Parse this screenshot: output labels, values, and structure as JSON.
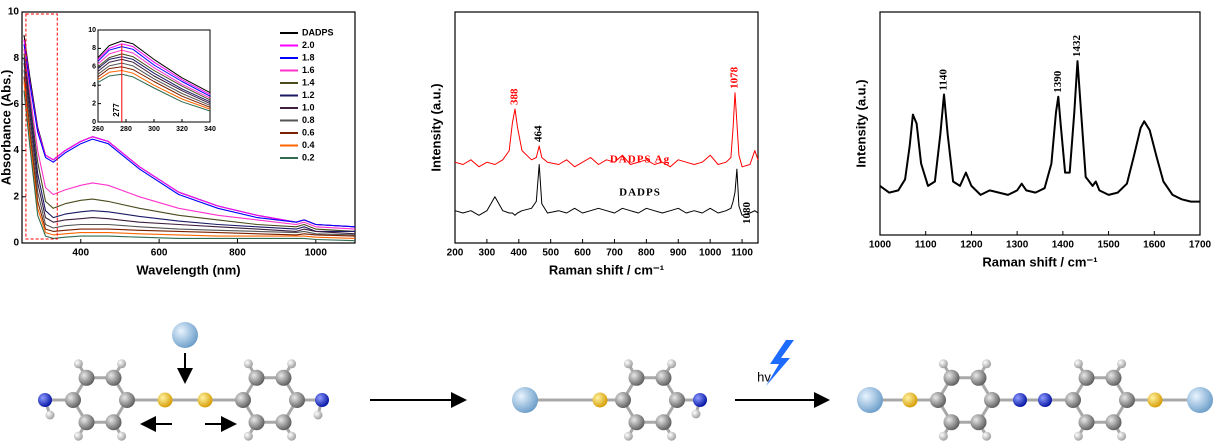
{
  "chart_data": [
    {
      "type": "line",
      "x_label": "Wavelength (nm)",
      "y_label": "Absorbance (Abs.)",
      "xlim": [
        250,
        1100
      ],
      "ylim": [
        0,
        10
      ],
      "xticks": [
        400,
        600,
        800,
        1000
      ],
      "yticks": [
        0,
        2,
        4,
        6,
        8,
        10
      ],
      "legend": "upper right",
      "x": [
        255,
        270,
        290,
        310,
        330,
        360,
        400,
        430,
        470,
        550,
        650,
        750,
        850,
        950,
        970,
        1000,
        1100
      ],
      "series": [
        {
          "name": "DADPS",
          "color": "#000000",
          "values": [
            9.0,
            7.2,
            5.0,
            3.8,
            3.6,
            4.0,
            4.4,
            4.6,
            4.4,
            3.3,
            2.2,
            1.6,
            1.2,
            0.9,
            1.0,
            0.8,
            0.7
          ]
        },
        {
          "name": "2.0",
          "color": "#ff00ff",
          "values": [
            8.8,
            7.0,
            4.9,
            3.8,
            3.6,
            4.0,
            4.4,
            4.6,
            4.4,
            3.3,
            2.2,
            1.6,
            1.2,
            0.9,
            1.0,
            0.8,
            0.7
          ]
        },
        {
          "name": "1.8",
          "color": "#0000ff",
          "values": [
            8.6,
            6.9,
            4.8,
            3.7,
            3.5,
            3.9,
            4.3,
            4.5,
            4.3,
            3.2,
            2.1,
            1.5,
            1.1,
            0.9,
            1.0,
            0.8,
            0.7
          ]
        },
        {
          "name": "1.6",
          "color": "#ff33cc",
          "values": [
            8.4,
            6.5,
            4.0,
            2.4,
            2.1,
            2.3,
            2.5,
            2.6,
            2.5,
            2.0,
            1.5,
            1.2,
            1.0,
            0.8,
            0.9,
            0.7,
            0.6
          ]
        },
        {
          "name": "1.4",
          "color": "#4b4b1e",
          "values": [
            8.2,
            6.2,
            3.5,
            1.8,
            1.5,
            1.7,
            1.85,
            1.9,
            1.8,
            1.5,
            1.2,
            1.0,
            0.8,
            0.7,
            0.8,
            0.6,
            0.5
          ]
        },
        {
          "name": "1.2",
          "color": "#1a1a66",
          "values": [
            8.0,
            6.0,
            3.0,
            1.4,
            1.1,
            1.25,
            1.35,
            1.4,
            1.35,
            1.15,
            0.95,
            0.8,
            0.7,
            0.6,
            0.7,
            0.5,
            0.5
          ]
        },
        {
          "name": "1.0",
          "color": "#3d1f3d",
          "values": [
            7.8,
            5.6,
            2.6,
            1.1,
            0.9,
            1.0,
            1.05,
            1.1,
            1.05,
            0.9,
            0.8,
            0.7,
            0.6,
            0.5,
            0.6,
            0.5,
            0.4
          ]
        },
        {
          "name": "0.8",
          "color": "#555555",
          "values": [
            7.5,
            5.2,
            2.2,
            0.8,
            0.65,
            0.75,
            0.8,
            0.8,
            0.8,
            0.7,
            0.6,
            0.55,
            0.5,
            0.45,
            0.5,
            0.4,
            0.35
          ]
        },
        {
          "name": "0.6",
          "color": "#7a1f00",
          "values": [
            7.2,
            4.8,
            1.8,
            0.6,
            0.5,
            0.55,
            0.6,
            0.6,
            0.6,
            0.55,
            0.5,
            0.45,
            0.4,
            0.35,
            0.4,
            0.35,
            0.3
          ]
        },
        {
          "name": "0.4",
          "color": "#ff6600",
          "values": [
            7.0,
            4.5,
            1.5,
            0.45,
            0.35,
            0.4,
            0.45,
            0.45,
            0.45,
            0.4,
            0.35,
            0.3,
            0.3,
            0.3,
            0.3,
            0.25,
            0.2
          ]
        },
        {
          "name": "0.2",
          "color": "#2e6b4f",
          "values": [
            6.6,
            4.2,
            1.2,
            0.3,
            0.2,
            0.25,
            0.3,
            0.3,
            0.3,
            0.25,
            0.2,
            0.2,
            0.2,
            0.2,
            0.2,
            0.15,
            0.1
          ]
        }
      ],
      "inset": {
        "xlim": [
          260,
          340
        ],
        "ylim": [
          0,
          10
        ],
        "xticks": [
          260,
          280,
          300,
          320,
          340
        ],
        "yticks": [
          0,
          2,
          4,
          6,
          8,
          10
        ],
        "x": [
          260,
          268,
          277,
          285,
          300,
          320,
          340
        ],
        "annotation": {
          "text": "277",
          "x": 277
        },
        "series_values": [
          [
            7.0,
            8.3,
            8.8,
            8.5,
            6.8,
            4.8,
            3.2
          ],
          [
            6.8,
            8.0,
            8.5,
            8.2,
            6.5,
            4.6,
            3.0
          ],
          [
            6.6,
            7.8,
            8.2,
            7.9,
            6.2,
            4.4,
            2.8
          ],
          [
            6.3,
            7.4,
            7.8,
            7.5,
            5.9,
            4.1,
            2.6
          ],
          [
            6.0,
            7.0,
            7.4,
            7.1,
            5.6,
            3.9,
            2.4
          ],
          [
            5.8,
            6.8,
            7.1,
            6.8,
            5.3,
            3.6,
            2.2
          ],
          [
            5.5,
            6.5,
            6.8,
            6.5,
            5.0,
            3.4,
            2.0
          ],
          [
            5.2,
            6.1,
            6.4,
            6.1,
            4.7,
            3.1,
            1.8
          ],
          [
            4.9,
            5.8,
            6.0,
            5.7,
            4.4,
            2.8,
            1.6
          ],
          [
            4.6,
            5.4,
            5.6,
            5.3,
            4.0,
            2.5,
            1.4
          ],
          [
            4.3,
            5.0,
            5.2,
            4.9,
            3.7,
            2.2,
            1.2
          ]
        ]
      }
    },
    {
      "type": "line",
      "x_label": "Raman shift / cm⁻¹",
      "y_label": "Intensity (a.u.)",
      "xlim": [
        200,
        1150
      ],
      "ylim": [
        0,
        100
      ],
      "xticks": [
        200,
        300,
        400,
        500,
        600,
        700,
        800,
        900,
        1000,
        1100
      ],
      "x": [
        200,
        225,
        250,
        275,
        300,
        325,
        350,
        370,
        380,
        388,
        396,
        410,
        440,
        455,
        464,
        472,
        490,
        525,
        550,
        575,
        600,
        625,
        650,
        675,
        700,
        725,
        750,
        775,
        800,
        825,
        850,
        875,
        900,
        925,
        950,
        975,
        1000,
        1025,
        1050,
        1065,
        1072,
        1078,
        1084,
        1090,
        1100,
        1125,
        1140,
        1150
      ],
      "series": [
        {
          "name": "DADPS Ag",
          "color": "#ff0000",
          "values": [
            35,
            34,
            36,
            33,
            35,
            34,
            36,
            40,
            52,
            58,
            50,
            40,
            36,
            37,
            42,
            37,
            35,
            34,
            36,
            33,
            35,
            37,
            34,
            36,
            35,
            38,
            34,
            35,
            36,
            34,
            35,
            33,
            36,
            35,
            34,
            35,
            38,
            34,
            35,
            37,
            50,
            65,
            52,
            38,
            33,
            34,
            40,
            36
          ]
        },
        {
          "name": "DADPS",
          "color": "#000000",
          "values": [
            14,
            13,
            14,
            12,
            14,
            20,
            14,
            13,
            13,
            12,
            13,
            14,
            15,
            18,
            34,
            17,
            13,
            14,
            13,
            15,
            13,
            14,
            15,
            14,
            13,
            15,
            14,
            13,
            15,
            14,
            13,
            14,
            15,
            13,
            14,
            13,
            15,
            13,
            14,
            15,
            18,
            22,
            32,
            16,
            12,
            13,
            14,
            13
          ]
        }
      ],
      "annotations": [
        {
          "text": "388",
          "x": 388,
          "color": "#ff0000"
        },
        {
          "text": "464",
          "x": 464,
          "color": "#000000"
        },
        {
          "text": "1078",
          "x": 1078,
          "color": "#ff0000"
        },
        {
          "text": "1080",
          "x": 1080,
          "color": "#000000"
        }
      ]
    },
    {
      "type": "line",
      "x_label": "Raman shift / cm⁻¹",
      "y_label": "Intensity (a.u.)",
      "xlim": [
        1000,
        1700
      ],
      "ylim": [
        0,
        100
      ],
      "xticks": [
        1000,
        1100,
        1200,
        1300,
        1400,
        1500,
        1600,
        1700
      ],
      "x": [
        1000,
        1020,
        1040,
        1055,
        1065,
        1072,
        1080,
        1090,
        1105,
        1120,
        1132,
        1140,
        1148,
        1160,
        1175,
        1188,
        1200,
        1220,
        1240,
        1260,
        1280,
        1300,
        1310,
        1320,
        1340,
        1360,
        1375,
        1385,
        1390,
        1395,
        1405,
        1415,
        1425,
        1432,
        1440,
        1450,
        1465,
        1472,
        1480,
        1500,
        1520,
        1540,
        1555,
        1570,
        1578,
        1590,
        1605,
        1620,
        1640,
        1660,
        1680,
        1700
      ],
      "series": [
        {
          "color": "#000000",
          "values": [
            22,
            19,
            20,
            25,
            40,
            54,
            50,
            32,
            22,
            24,
            45,
            63,
            45,
            24,
            22,
            28,
            22,
            18,
            20,
            19,
            18,
            20,
            23,
            20,
            19,
            21,
            32,
            55,
            62,
            50,
            28,
            28,
            55,
            78,
            55,
            26,
            22,
            24,
            20,
            18,
            19,
            23,
            35,
            48,
            51,
            47,
            35,
            24,
            18,
            16,
            15,
            15
          ]
        }
      ],
      "annotations": [
        {
          "text": "1140",
          "x": 1140,
          "color": "#000000"
        },
        {
          "text": "1390",
          "x": 1390,
          "color": "#000000"
        },
        {
          "text": "1432",
          "x": 1432,
          "color": "#000000"
        }
      ]
    }
  ],
  "diagram": {
    "light_label": "hv"
  }
}
